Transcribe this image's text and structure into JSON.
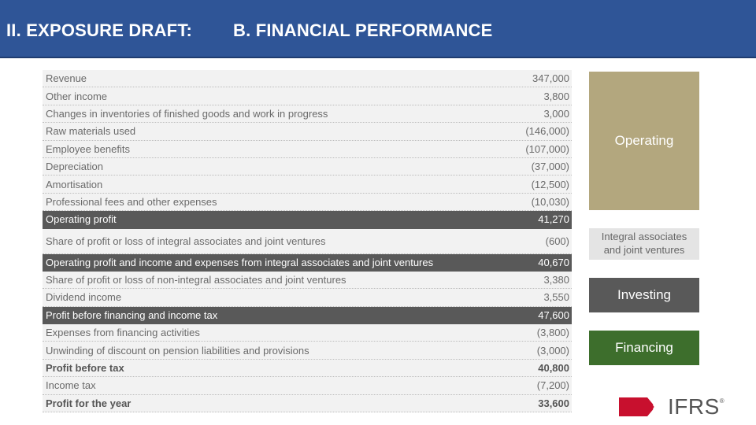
{
  "header": {
    "left_title": "II. EXPOSURE DRAFT:",
    "right_title": "B. FINANCIAL PERFORMANCE"
  },
  "statement": {
    "rows": [
      {
        "label": "Revenue",
        "value": "347,000"
      },
      {
        "label": "Other income",
        "value": "3,800"
      },
      {
        "label": "Changes in inventories of finished goods and work in progress",
        "value": "3,000"
      },
      {
        "label": "Raw materials used",
        "value": "(146,000)"
      },
      {
        "label": "Employee benefits",
        "value": "(107,000)"
      },
      {
        "label": "Depreciation",
        "value": "(37,000)"
      },
      {
        "label": "Amortisation",
        "value": "(12,500)"
      },
      {
        "label": "Professional fees and other expenses",
        "value": "(10,030)"
      },
      {
        "label": "Operating profit",
        "value": "41,270"
      },
      {
        "label": "Share of profit or loss of integral associates and joint ventures",
        "value": "(600)"
      },
      {
        "label": "Operating profit and income and expenses from integral associates and joint ventures",
        "value": "40,670"
      },
      {
        "label": "Share of profit or loss of non-integral associates and joint ventures",
        "value": "3,380"
      },
      {
        "label": "Dividend income",
        "value": "3,550"
      },
      {
        "label": "Profit before financing and income tax",
        "value": "47,600"
      },
      {
        "label": "Expenses from financing activities",
        "value": "(3,800)"
      },
      {
        "label": "Unwinding of discount on pension liabilities and provisions",
        "value": "(3,000)"
      },
      {
        "label": "Profit before tax",
        "value": "40,800"
      },
      {
        "label": "Income tax",
        "value": "(7,200)"
      },
      {
        "label": "Profit for the year",
        "value": "33,600"
      }
    ]
  },
  "categories": {
    "operating": "Operating",
    "integral": "Integral associates and joint ventures",
    "investing": "Investing",
    "financing": "Financing"
  },
  "logo": {
    "text": "IFRS",
    "registered": "®"
  },
  "colors": {
    "header_bg": "#2f5597",
    "operating": "#b3a77e",
    "integral": "#e4e4e4",
    "investing": "#595959",
    "financing": "#3d6e2c",
    "logo_red": "#c8102e"
  }
}
